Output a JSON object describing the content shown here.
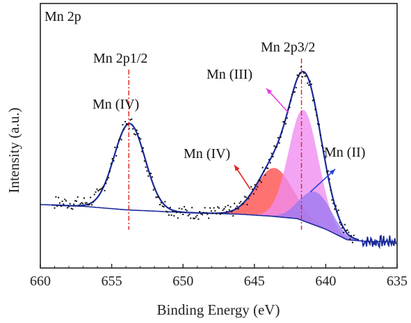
{
  "chart_data": {
    "type": "line",
    "panel_label": "Mn 2p",
    "xlabel": "Binding Energy (eV)",
    "ylabel": "Intensity (a.u.)",
    "xlim": [
      660,
      635
    ],
    "x_reversed": true,
    "x_ticks": [
      660,
      655,
      650,
      645,
      640,
      635
    ],
    "y_ticks_shown": false,
    "grid": false,
    "legend": "none",
    "fit_colors": {
      "Mn (IV) 2p3/2": "#ff4a4a",
      "Mn (III)": "#f08cf0",
      "Mn (II)": "#9a7af0",
      "envelope": "#1a2a9a",
      "background": "#1a2a9a",
      "raw": "#111111",
      "marker_line": "#e0201e"
    },
    "reference_lines": [
      {
        "x": 653.8,
        "label": "Mn 2p1/2"
      },
      {
        "x": 641.7,
        "label": "Mn 2p3/2"
      }
    ],
    "annotations": [
      {
        "text": "Mn (IV)",
        "x": 653.8,
        "y": 0.69
      },
      {
        "text": "Mn (III)",
        "x": 643.2,
        "y": 0.93
      },
      {
        "text": "Mn (IV)",
        "x": 645.8,
        "y": 0.44
      },
      {
        "text": "Mn (II)",
        "x": 638.8,
        "y": 0.49
      }
    ],
    "labels": {
      "p12": "Mn 2p1/2",
      "p32": "Mn 2p3/2",
      "iv_left": "Mn (IV)",
      "iii": "Mn (III)",
      "iv_right": "Mn (IV)",
      "ii": "Mn (II)"
    },
    "ylim": [
      -0.35,
      1.15
    ],
    "background_curve": [
      [
        660,
        0.01
      ],
      [
        657,
        0.0
      ],
      [
        654,
        -0.02
      ],
      [
        650,
        -0.035
      ],
      [
        646,
        -0.045
      ],
      [
        644,
        -0.055
      ],
      [
        642,
        -0.07
      ],
      [
        640,
        -0.13
      ],
      [
        638.5,
        -0.19
      ],
      [
        637,
        -0.2
      ],
      [
        635,
        -0.2
      ]
    ],
    "fitted_peaks": [
      {
        "name": "Mn (IV)",
        "center": 643.6,
        "height": 0.275,
        "fwhm": 3.0,
        "color": "#ff4a4a"
      },
      {
        "name": "Mn (III)",
        "center": 641.55,
        "height": 0.63,
        "fwhm": 2.45,
        "color": "#f08cf0"
      },
      {
        "name": "Mn (II)",
        "center": 640.7,
        "height": 0.19,
        "fwhm": 2.6,
        "color": "#9a7af0"
      }
    ],
    "peak_2p12": {
      "center": 653.75,
      "height": 0.49,
      "fwhm": 2.55
    },
    "noise_region": [
      637.5,
      635
    ]
  }
}
